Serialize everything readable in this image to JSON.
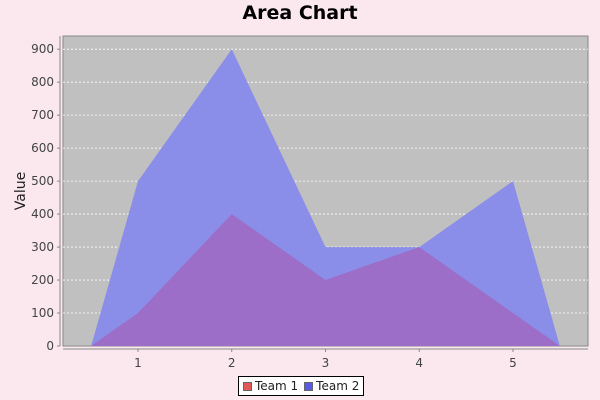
{
  "chart_data": {
    "type": "area",
    "title": "Area Chart",
    "xlabel": "",
    "ylabel": "Value",
    "categories": [
      "1",
      "2",
      "3",
      "4",
      "5"
    ],
    "x_range": [
      0.5,
      5.5
    ],
    "ylim": [
      0,
      940
    ],
    "yticks": [
      0,
      100,
      200,
      300,
      400,
      500,
      600,
      700,
      800,
      900
    ],
    "grid": true,
    "legend_position": "bottom",
    "plot_background": "#c0c0c0",
    "series": [
      {
        "name": "Team 1",
        "color": "#e05858",
        "area_color": "#9c6ec8",
        "points": [
          [
            0.5,
            0
          ],
          [
            1,
            100
          ],
          [
            2,
            400
          ],
          [
            3,
            200
          ],
          [
            4,
            300
          ],
          [
            5,
            100
          ],
          [
            5.5,
            0
          ]
        ]
      },
      {
        "name": "Team 2",
        "color": "#5a5ae8",
        "area_color": "#8a8ee8",
        "points": [
          [
            0.5,
            0
          ],
          [
            1,
            500
          ],
          [
            2,
            900
          ],
          [
            3,
            300
          ],
          [
            4,
            300
          ],
          [
            5,
            500
          ],
          [
            5.5,
            0
          ]
        ]
      }
    ]
  }
}
